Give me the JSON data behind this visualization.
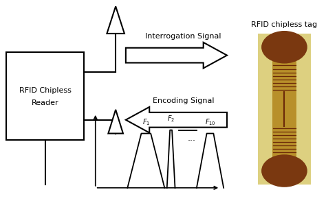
{
  "bg_color": "#ffffff",
  "reader_text_line1": "RFID Chipless",
  "reader_text_line2": "Reader",
  "interrogation_label": "Interrogation Signal",
  "encoding_label": "Encoding Signal",
  "tag_label": "RFID chipless tag",
  "tag_bg_color": "#ddd080",
  "tag_strip_color": "#b8902a",
  "tag_circle_color": "#7a3810",
  "tag_coil_color": "#6a2808",
  "tag_inner_strip_color": "#9a7020"
}
